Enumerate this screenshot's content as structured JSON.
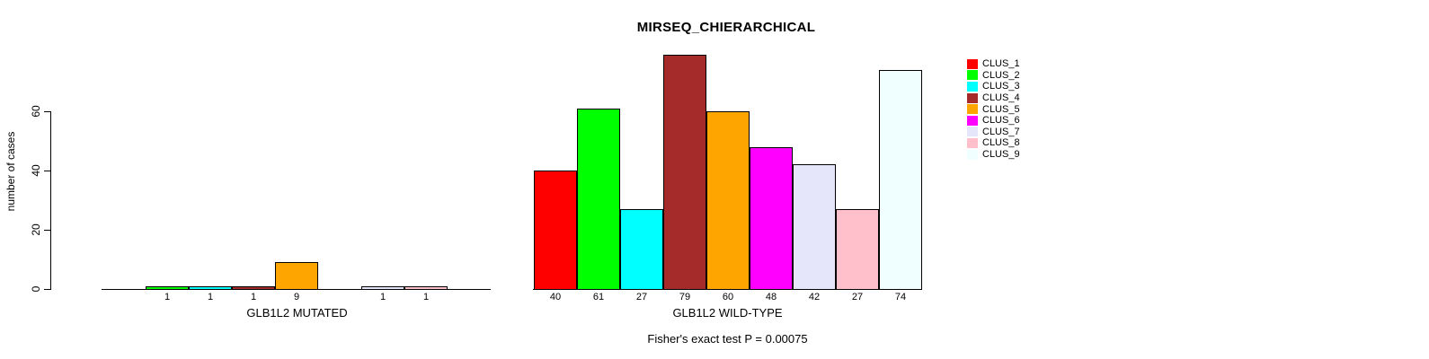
{
  "chart_data": {
    "type": "bar",
    "title": "MIRSEQ_CHIERARCHICAL",
    "ylabel": "number of cases",
    "yticks": [
      0,
      20,
      40,
      60
    ],
    "grid": false,
    "legend_position": "right",
    "clusters": [
      {
        "name": "CLUS_1",
        "color": "#FF0000"
      },
      {
        "name": "CLUS_2",
        "color": "#00FF00"
      },
      {
        "name": "CLUS_3",
        "color": "#00FFFF"
      },
      {
        "name": "CLUS_4",
        "color": "#A52A2A"
      },
      {
        "name": "CLUS_5",
        "color": "#FFA500"
      },
      {
        "name": "CLUS_6",
        "color": "#FF00FF"
      },
      {
        "name": "CLUS_7",
        "color": "#E6E6FA"
      },
      {
        "name": "CLUS_8",
        "color": "#FFC0CB"
      },
      {
        "name": "CLUS_9",
        "color": "#F0FFFF"
      }
    ],
    "groups": [
      {
        "label": "GLB1L2 MUTATED",
        "values": [
          0,
          1,
          1,
          1,
          9,
          0,
          1,
          1,
          0
        ]
      },
      {
        "label": "GLB1L2 WILD-TYPE",
        "values": [
          40,
          61,
          27,
          79,
          60,
          48,
          42,
          27,
          74
        ]
      }
    ],
    "annotation": "Fisher's exact test P = 0.00075"
  }
}
